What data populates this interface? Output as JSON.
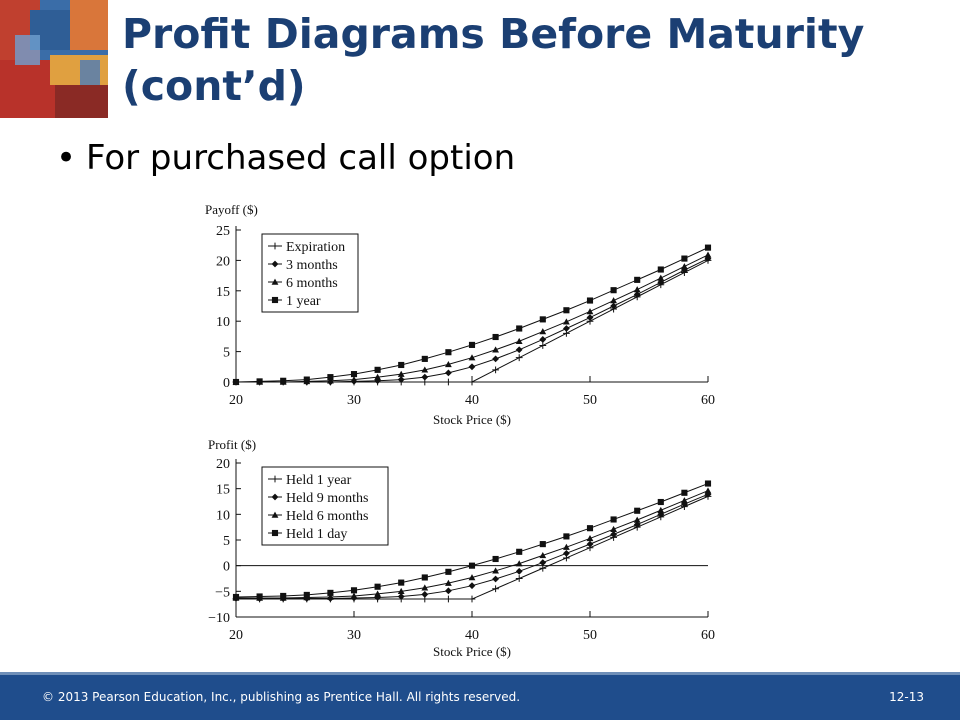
{
  "slide": {
    "title_line1": "Profit Diagrams Before Maturity",
    "title_line2": "(cont’d)",
    "bullet": "For purchased call option",
    "footer_text": "© 2013 Pearson Education, Inc., publishing as Prentice Hall. All rights reserved.",
    "page_number": "12-13",
    "colors": {
      "title": "#1b3f73",
      "footer_bg": "#1f4d8c"
    }
  },
  "chart_data": [
    {
      "type": "line",
      "ylabel": "Payoff ($)",
      "xlabel": "Stock Price ($)",
      "xlim": [
        20,
        60
      ],
      "ylim": [
        0,
        25
      ],
      "xticks": [
        20,
        30,
        40,
        50,
        60
      ],
      "yticks": [
        0,
        5,
        10,
        15,
        20,
        25
      ],
      "legend_position": "top-left",
      "x": [
        20,
        22,
        24,
        26,
        28,
        30,
        32,
        34,
        36,
        38,
        40,
        42,
        44,
        46,
        48,
        50,
        52,
        54,
        56,
        58,
        60
      ],
      "series": [
        {
          "name": "Expiration",
          "marker": "plus",
          "values": [
            0,
            0,
            0,
            0,
            0,
            0,
            0,
            0,
            0,
            0,
            0,
            2,
            4,
            6,
            8,
            10,
            12,
            14,
            16,
            18,
            20
          ]
        },
        {
          "name": "3 months",
          "marker": "diamond",
          "values": [
            0,
            0,
            0,
            0,
            0,
            0.1,
            0.2,
            0.4,
            0.8,
            1.5,
            2.5,
            3.8,
            5.3,
            7.0,
            8.8,
            10.6,
            12.5,
            14.4,
            16.4,
            18.4,
            20.3
          ]
        },
        {
          "name": "6 months",
          "marker": "triangle",
          "values": [
            0,
            0,
            0,
            0.1,
            0.2,
            0.4,
            0.8,
            1.3,
            2.0,
            2.9,
            4.0,
            5.3,
            6.7,
            8.3,
            9.9,
            11.6,
            13.4,
            15.2,
            17.1,
            19.0,
            20.9
          ]
        },
        {
          "name": "1 year",
          "marker": "square",
          "values": [
            0,
            0.1,
            0.2,
            0.4,
            0.8,
            1.3,
            2.0,
            2.8,
            3.8,
            4.9,
            6.1,
            7.4,
            8.8,
            10.3,
            11.8,
            13.4,
            15.1,
            16.8,
            18.5,
            20.3,
            22.1
          ]
        }
      ]
    },
    {
      "type": "line",
      "ylabel": "Profit ($)",
      "xlabel": "Stock Price ($)",
      "xlim": [
        20,
        60
      ],
      "ylim": [
        -10,
        20
      ],
      "xticks": [
        20,
        30,
        40,
        50,
        60
      ],
      "yticks": [
        -10,
        -5,
        0,
        5,
        10,
        15,
        20
      ],
      "legend_position": "top-left",
      "x": [
        20,
        22,
        24,
        26,
        28,
        30,
        32,
        34,
        36,
        38,
        40,
        42,
        44,
        46,
        48,
        50,
        52,
        54,
        56,
        58,
        60
      ],
      "series": [
        {
          "name": "Held 1 year",
          "marker": "plus",
          "values": [
            -6.5,
            -6.5,
            -6.5,
            -6.5,
            -6.5,
            -6.5,
            -6.5,
            -6.5,
            -6.5,
            -6.5,
            -6.5,
            -4.5,
            -2.5,
            -0.5,
            1.5,
            3.5,
            5.5,
            7.5,
            9.5,
            11.5,
            13.5
          ]
        },
        {
          "name": "Held 9 months",
          "marker": "diamond",
          "values": [
            -6.4,
            -6.4,
            -6.4,
            -6.4,
            -6.4,
            -6.3,
            -6.2,
            -6.0,
            -5.6,
            -4.9,
            -3.9,
            -2.6,
            -1.1,
            0.6,
            2.4,
            4.2,
            6.1,
            8.0,
            10.0,
            12.0,
            13.9
          ]
        },
        {
          "name": "Held 6 months",
          "marker": "triangle",
          "values": [
            -6.3,
            -6.3,
            -6.3,
            -6.2,
            -6.1,
            -5.9,
            -5.5,
            -5.0,
            -4.3,
            -3.4,
            -2.3,
            -1.0,
            0.4,
            2.0,
            3.6,
            5.3,
            7.1,
            8.9,
            10.8,
            12.7,
            14.6
          ]
        },
        {
          "name": "Held 1 day",
          "marker": "square",
          "values": [
            -6.1,
            -6.0,
            -5.9,
            -5.7,
            -5.3,
            -4.8,
            -4.1,
            -3.3,
            -2.3,
            -1.2,
            0.0,
            1.3,
            2.7,
            4.2,
            5.7,
            7.3,
            9.0,
            10.7,
            12.4,
            14.2,
            16.0
          ]
        }
      ]
    }
  ]
}
